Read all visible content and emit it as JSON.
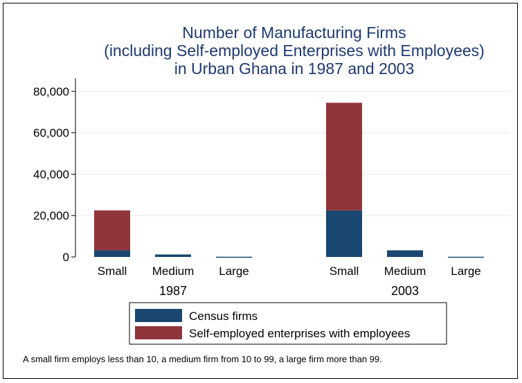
{
  "chart_data": {
    "type": "bar",
    "stacked": true,
    "title_lines": [
      "Number of Manufacturing Firms",
      "(including Self-employed Enterprises with Employees)",
      "in Urban Ghana in 1987 and 2003"
    ],
    "groups": [
      "1987",
      "2003"
    ],
    "categories": [
      "Small",
      "Medium",
      "Large"
    ],
    "series": [
      {
        "name": "Census firms",
        "color": "#1a476f",
        "values": [
          [
            3200,
            1200,
            100
          ],
          [
            22500,
            3200,
            100
          ]
        ]
      },
      {
        "name": "Self-employed enterprises with employees",
        "color": "#90353b",
        "values": [
          [
            19300,
            0,
            0
          ],
          [
            52000,
            0,
            0
          ]
        ]
      }
    ],
    "ylim": [
      0,
      85000
    ],
    "yticks": [
      0,
      20000,
      40000,
      60000,
      80000
    ],
    "ytick_labels": [
      "0",
      "20,000",
      "40,000",
      "60,000",
      "80,000"
    ],
    "grid": true,
    "legend_position": "bottom",
    "note": "A small firm employs less than 10, a medium firm from 10 to 99, a large firm more than 99."
  }
}
